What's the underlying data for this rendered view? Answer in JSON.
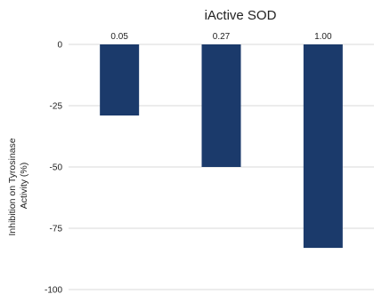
{
  "chart_data": {
    "type": "bar",
    "title": "iActive SOD",
    "ylabel": "Inhibition on Tyrosinase Activity (%)",
    "ylabel_lines": [
      "Inhibition on Tyrosinase",
      "Activity (%)"
    ],
    "xlabel": "",
    "categories": [
      "0.05",
      "0.27",
      "1.00"
    ],
    "values": [
      -29,
      -50,
      -83
    ],
    "ylim": [
      -100,
      0
    ],
    "yticks": [
      0,
      -25,
      -50,
      -75,
      -100
    ],
    "ytick_labels": [
      "0",
      "-25",
      "-50",
      "-75",
      "-100"
    ],
    "category_axis_position": "top",
    "grid": true,
    "bar_color": "#1b3a6b",
    "grid_color": "#d9d9d9"
  }
}
